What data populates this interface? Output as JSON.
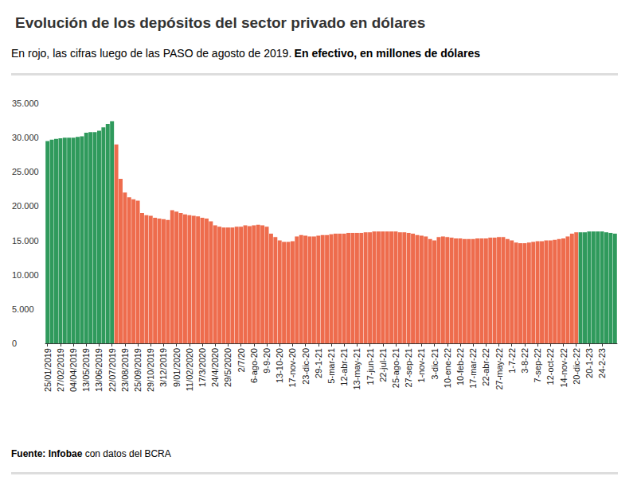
{
  "chart_data": {
    "type": "bar",
    "title": "Evolución de los depósitos del sector privado en dólares",
    "subtitle": [
      "En rojo, las cifras luego de las PASO de agosto de 2019.",
      "En efectivo, en millones de dólares"
    ],
    "source": [
      "Fuente: Infobae",
      "con datos del BCRA"
    ],
    "categories": [
      "25/01/2019",
      null,
      null,
      "27/02/2019",
      null,
      null,
      "04/04/2019",
      null,
      null,
      "13/05/2019",
      null,
      null,
      "13/06/2019",
      null,
      null,
      "22/07/2019",
      null,
      null,
      "23/08/2019",
      null,
      null,
      "25/09/2019",
      null,
      null,
      "29/10/2019",
      null,
      null,
      "3/12/2019",
      null,
      null,
      "9/01/2020",
      null,
      null,
      "11/02/2020",
      null,
      null,
      "17/3/2020",
      null,
      null,
      "24/4/2020",
      null,
      null,
      "29/5/2020",
      null,
      null,
      "2/7/20",
      null,
      null,
      "6-ago-20",
      null,
      null,
      "9-9-20",
      null,
      null,
      "13-10-20",
      null,
      null,
      "17-nov-20",
      null,
      null,
      "23-dic-20",
      null,
      null,
      "29-1-21",
      null,
      null,
      "5-mar-21",
      null,
      null,
      "12-abr-21",
      null,
      null,
      "13-may-21",
      null,
      null,
      "17-jun-21",
      null,
      null,
      "22-jul-21",
      null,
      null,
      "25-ago-21",
      null,
      null,
      "27-sep-21",
      null,
      null,
      "1-nov-21",
      null,
      null,
      "3-dic-21",
      null,
      null,
      "10-ene-22",
      null,
      null,
      "10-feb-22",
      null,
      null,
      "17-mar-22",
      null,
      null,
      "22-abr-22",
      null,
      null,
      "27-may-22",
      null,
      null,
      "1-7-22",
      null,
      null,
      "3-8-22",
      null,
      null,
      "7-sep-22",
      null,
      null,
      "12-oct-22",
      null,
      null,
      "14-nov-22",
      null,
      null,
      "20-dic-22",
      null,
      null,
      "20-1-23",
      null,
      null,
      "24-2-23",
      null,
      null,
      null
    ],
    "values": [
      29500,
      29700,
      29800,
      29900,
      30000,
      30000,
      30000,
      30100,
      30200,
      30700,
      30800,
      30800,
      31000,
      31500,
      32000,
      32400,
      29000,
      24000,
      22000,
      21300,
      21000,
      20800,
      19000,
      18700,
      18600,
      18300,
      18200,
      18100,
      18000,
      19400,
      19200,
      19000,
      18800,
      18700,
      18600,
      18500,
      18300,
      18200,
      17800,
      17200,
      17000,
      16900,
      16900,
      16900,
      17000,
      17000,
      17200,
      17100,
      17200,
      17300,
      17200,
      17000,
      16000,
      15500,
      15000,
      14800,
      14800,
      14900,
      15600,
      15800,
      15700,
      15600,
      15600,
      15700,
      15800,
      15800,
      15900,
      16000,
      16000,
      16000,
      16100,
      16100,
      16100,
      16100,
      16200,
      16200,
      16300,
      16300,
      16300,
      16300,
      16300,
      16300,
      16200,
      16200,
      16100,
      16000,
      15800,
      15700,
      15600,
      15200,
      15000,
      15500,
      15600,
      15500,
      15400,
      15300,
      15300,
      15200,
      15200,
      15200,
      15300,
      15300,
      15300,
      15400,
      15400,
      15500,
      15500,
      15200,
      15000,
      14700,
      14600,
      14600,
      14700,
      14800,
      14900,
      14900,
      15000,
      15000,
      15100,
      15200,
      15300,
      15600,
      16000,
      16200,
      16200,
      16200,
      16300,
      16300,
      16300,
      16300,
      16200,
      16100,
      16000
    ],
    "colors": [
      "#2f9a5c",
      "#2f9a5c",
      "#2f9a5c",
      "#2f9a5c",
      "#2f9a5c",
      "#2f9a5c",
      "#2f9a5c",
      "#2f9a5c",
      "#2f9a5c",
      "#2f9a5c",
      "#2f9a5c",
      "#2f9a5c",
      "#2f9a5c",
      "#2f9a5c",
      "#2f9a5c",
      "#2f9a5c",
      "#ee6c4d",
      "#ee6c4d",
      "#ee6c4d",
      "#ee6c4d",
      "#ee6c4d",
      "#ee6c4d",
      "#ee6c4d",
      "#ee6c4d",
      "#ee6c4d",
      "#ee6c4d",
      "#ee6c4d",
      "#ee6c4d",
      "#ee6c4d",
      "#ee6c4d",
      "#ee6c4d",
      "#ee6c4d",
      "#ee6c4d",
      "#ee6c4d",
      "#ee6c4d",
      "#ee6c4d",
      "#ee6c4d",
      "#ee6c4d",
      "#ee6c4d",
      "#ee6c4d",
      "#ee6c4d",
      "#ee6c4d",
      "#ee6c4d",
      "#ee6c4d",
      "#ee6c4d",
      "#ee6c4d",
      "#ee6c4d",
      "#ee6c4d",
      "#ee6c4d",
      "#ee6c4d",
      "#ee6c4d",
      "#ee6c4d",
      "#ee6c4d",
      "#ee6c4d",
      "#ee6c4d",
      "#ee6c4d",
      "#ee6c4d",
      "#ee6c4d",
      "#ee6c4d",
      "#ee6c4d",
      "#ee6c4d",
      "#ee6c4d",
      "#ee6c4d",
      "#ee6c4d",
      "#ee6c4d",
      "#ee6c4d",
      "#ee6c4d",
      "#ee6c4d",
      "#ee6c4d",
      "#ee6c4d",
      "#ee6c4d",
      "#ee6c4d",
      "#ee6c4d",
      "#ee6c4d",
      "#ee6c4d",
      "#ee6c4d",
      "#ee6c4d",
      "#ee6c4d",
      "#ee6c4d",
      "#ee6c4d",
      "#ee6c4d",
      "#ee6c4d",
      "#ee6c4d",
      "#ee6c4d",
      "#ee6c4d",
      "#ee6c4d",
      "#ee6c4d",
      "#ee6c4d",
      "#ee6c4d",
      "#ee6c4d",
      "#ee6c4d",
      "#ee6c4d",
      "#ee6c4d",
      "#ee6c4d",
      "#ee6c4d",
      "#ee6c4d",
      "#ee6c4d",
      "#ee6c4d",
      "#ee6c4d",
      "#ee6c4d",
      "#ee6c4d",
      "#ee6c4d",
      "#ee6c4d",
      "#ee6c4d",
      "#ee6c4d",
      "#ee6c4d",
      "#ee6c4d",
      "#ee6c4d",
      "#ee6c4d",
      "#ee6c4d",
      "#ee6c4d",
      "#ee6c4d",
      "#ee6c4d",
      "#ee6c4d",
      "#ee6c4d",
      "#ee6c4d",
      "#ee6c4d",
      "#ee6c4d",
      "#ee6c4d",
      "#ee6c4d",
      "#ee6c4d",
      "#ee6c4d",
      "#ee6c4d",
      "#ee6c4d",
      "#2f9a5c",
      "#2f9a5c",
      "#2f9a5c",
      "#2f9a5c",
      "#2f9a5c",
      "#2f9a5c",
      "#2f9a5c",
      "#2f9a5c",
      "#2f9a5c"
    ],
    "ylim": [
      0,
      35000
    ],
    "yticks": [
      0,
      {
        "value": 5000,
        "label": "5.000"
      },
      {
        "value": 10000,
        "label": "10.000"
      },
      {
        "value": 15000,
        "label": "15.000"
      },
      {
        "value": 20000,
        "label": "20.000"
      },
      {
        "value": 25000,
        "label": "25.000"
      },
      {
        "value": 30000,
        "label": "30.000"
      },
      {
        "value": 35000,
        "label": "35.000"
      }
    ],
    "grid": false
  }
}
